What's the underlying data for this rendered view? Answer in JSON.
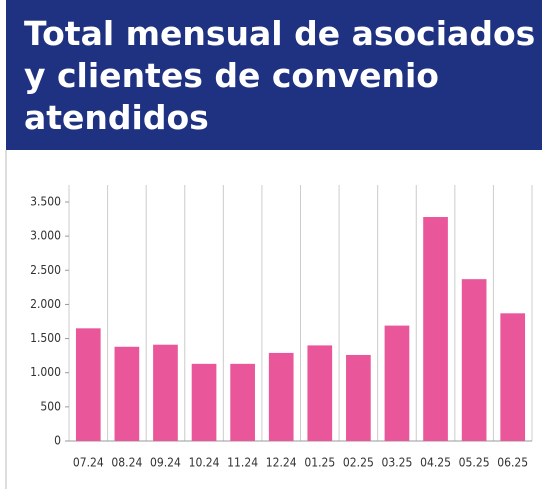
{
  "chart_data": {
    "type": "bar",
    "title": [
      "Total mensual de asociados",
      "y clientes de convenio",
      "atendidos"
    ],
    "categories": [
      "07.24",
      "08.24",
      "09.24",
      "10.24",
      "11.24",
      "12.24",
      "01.25",
      "02.25",
      "03.25",
      "04.25",
      "05.25",
      "06.25"
    ],
    "values": [
      1650,
      1380,
      1410,
      1130,
      1130,
      1290,
      1400,
      1260,
      1690,
      3280,
      2370,
      1870
    ],
    "color": "#e9579a",
    "ylim": [
      0,
      3500
    ],
    "yticks": [
      0,
      500,
      {
        "value": 1000,
        "label": "1.000"
      },
      {
        "value": 1500,
        "label": "1.500"
      },
      {
        "value": 2000,
        "label": "2.000"
      },
      {
        "value": 2500,
        "label": "2.500"
      },
      {
        "value": 3000,
        "label": "3.000"
      },
      {
        "value": 3500,
        "label": "3.500"
      }
    ],
    "grid": true
  }
}
